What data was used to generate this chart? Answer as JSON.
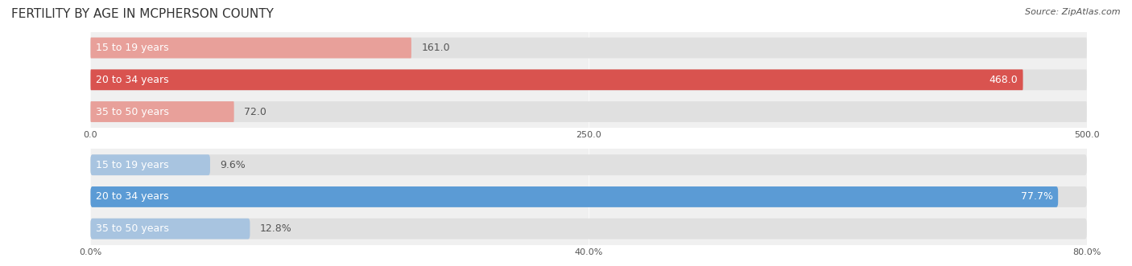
{
  "title": "FERTILITY BY AGE IN MCPHERSON COUNTY",
  "source_text": "Source: ZipAtlas.com",
  "top_chart": {
    "categories": [
      "15 to 19 years",
      "20 to 34 years",
      "35 to 50 years"
    ],
    "values": [
      161.0,
      468.0,
      72.0
    ],
    "xlim": [
      0,
      500
    ],
    "xticks": [
      0.0,
      250.0,
      500.0
    ],
    "bar_colors": [
      "#e8a09a",
      "#d9534f",
      "#e8a09a"
    ],
    "bar_colors_light": [
      "#f2c4c1",
      "#e8736d",
      "#f2c4c1"
    ],
    "value_labels": [
      "161.0",
      "468.0",
      "72.0"
    ]
  },
  "bottom_chart": {
    "categories": [
      "15 to 19 years",
      "20 to 34 years",
      "35 to 50 years"
    ],
    "values": [
      9.6,
      77.7,
      12.8
    ],
    "xlim": [
      0,
      80
    ],
    "xticks": [
      0.0,
      40.0,
      80.0
    ],
    "xtick_labels": [
      "0.0%",
      "40.0%",
      "80.0%"
    ],
    "bar_colors": [
      "#a8c4e0",
      "#5b9bd5",
      "#a8c4e0"
    ],
    "value_labels": [
      "9.6%",
      "77.7%",
      "12.8%"
    ]
  },
  "bg_color": "#f0f0f0",
  "bar_bg_color": "#e8e8e8",
  "label_color": "#555555",
  "title_color": "#333333",
  "bar_height": 0.65,
  "label_fontsize": 9,
  "title_fontsize": 11,
  "value_fontsize": 9
}
